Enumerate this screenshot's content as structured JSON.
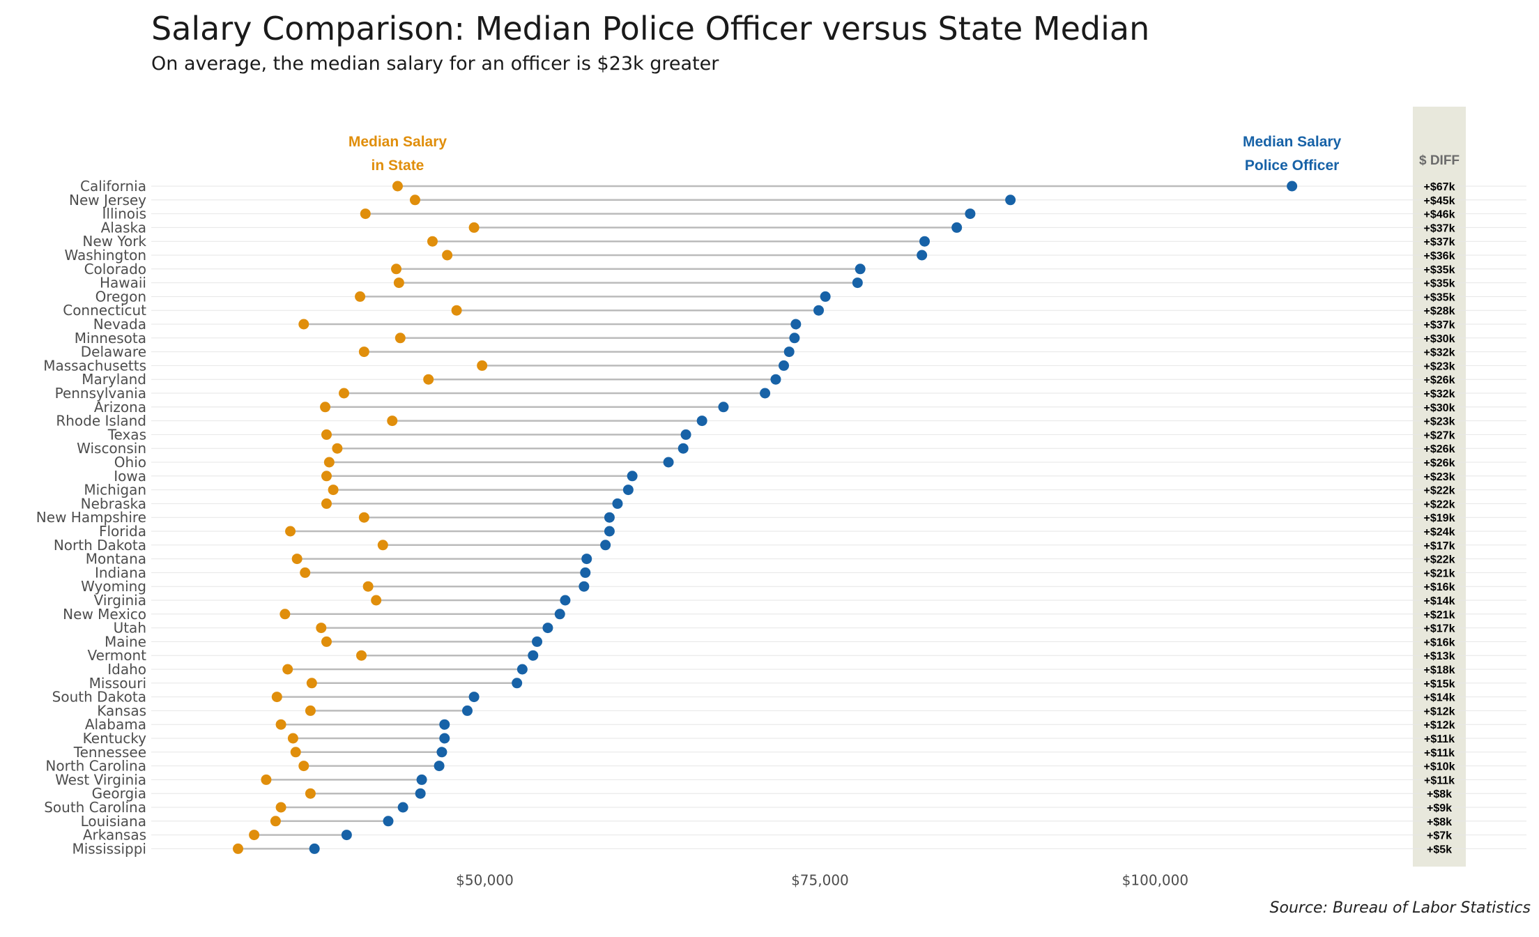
{
  "title": "Salary Comparison: Median Police Officer versus State Median",
  "subtitle": "On average, the median salary for an officer is $23k greater",
  "source": "Source: Bureau of Labor Statistics",
  "colors": {
    "state": "#E08E0B",
    "police": "#1762A7",
    "segment": "#BBBBBB",
    "diff_panel": "#E8E8DC",
    "grid": "#E6E6E6"
  },
  "chart_data": {
    "type": "dumbbell",
    "series": [
      {
        "key": "state",
        "name": "Median Salary in State",
        "label_lines": [
          "Median Salary",
          "in State"
        ]
      },
      {
        "key": "police",
        "name": "Median Salary Police Officer",
        "label_lines": [
          "Median Salary",
          "Police Officer"
        ]
      }
    ],
    "diff_header": "$ DIFF",
    "xticks": [
      50000,
      75000,
      100000
    ],
    "xtick_labels": [
      "$50,000",
      "$75,000",
      "$100,000"
    ],
    "xlim": [
      25000,
      122000
    ],
    "grid": "horizontal",
    "rows": [
      {
        "state": "California",
        "state_salary": 43500,
        "police_salary": 110200,
        "diff": "+$67k"
      },
      {
        "state": "New Jersey",
        "state_salary": 44800,
        "police_salary": 89200,
        "diff": "+$45k"
      },
      {
        "state": "Illinois",
        "state_salary": 41100,
        "police_salary": 86200,
        "diff": "+$46k"
      },
      {
        "state": "Alaska",
        "state_salary": 49200,
        "police_salary": 85200,
        "diff": "+$37k"
      },
      {
        "state": "New York",
        "state_salary": 46100,
        "police_salary": 82800,
        "diff": "+$37k"
      },
      {
        "state": "Washington",
        "state_salary": 47200,
        "police_salary": 82600,
        "diff": "+$36k"
      },
      {
        "state": "Colorado",
        "state_salary": 43400,
        "police_salary": 78000,
        "diff": "+$35k"
      },
      {
        "state": "Hawaii",
        "state_salary": 43600,
        "police_salary": 77800,
        "diff": "+$35k"
      },
      {
        "state": "Oregon",
        "state_salary": 40700,
        "police_salary": 75400,
        "diff": "+$35k"
      },
      {
        "state": "Connecticut",
        "state_salary": 47900,
        "police_salary": 74900,
        "diff": "+$28k"
      },
      {
        "state": "Nevada",
        "state_salary": 36500,
        "police_salary": 73200,
        "diff": "+$37k"
      },
      {
        "state": "Minnesota",
        "state_salary": 43700,
        "police_salary": 73100,
        "diff": "+$30k"
      },
      {
        "state": "Delaware",
        "state_salary": 41000,
        "police_salary": 72700,
        "diff": "+$32k"
      },
      {
        "state": "Massachusetts",
        "state_salary": 49800,
        "police_salary": 72300,
        "diff": "+$23k"
      },
      {
        "state": "Maryland",
        "state_salary": 45800,
        "police_salary": 71700,
        "diff": "+$26k"
      },
      {
        "state": "Pennsylvania",
        "state_salary": 39500,
        "police_salary": 70900,
        "diff": "+$32k"
      },
      {
        "state": "Arizona",
        "state_salary": 38100,
        "police_salary": 67800,
        "diff": "+$30k"
      },
      {
        "state": "Rhode Island",
        "state_salary": 43100,
        "police_salary": 66200,
        "diff": "+$23k"
      },
      {
        "state": "Texas",
        "state_salary": 38200,
        "police_salary": 65000,
        "diff": "+$27k"
      },
      {
        "state": "Wisconsin",
        "state_salary": 39000,
        "police_salary": 64800,
        "diff": "+$26k"
      },
      {
        "state": "Ohio",
        "state_salary": 38400,
        "police_salary": 63700,
        "diff": "+$26k"
      },
      {
        "state": "Iowa",
        "state_salary": 38200,
        "police_salary": 61000,
        "diff": "+$23k"
      },
      {
        "state": "Michigan",
        "state_salary": 38700,
        "police_salary": 60700,
        "diff": "+$22k"
      },
      {
        "state": "Nebraska",
        "state_salary": 38200,
        "police_salary": 59900,
        "diff": "+$22k"
      },
      {
        "state": "New Hampshire",
        "state_salary": 41000,
        "police_salary": 59300,
        "diff": "+$19k"
      },
      {
        "state": "Florida",
        "state_salary": 35500,
        "police_salary": 59300,
        "diff": "+$24k"
      },
      {
        "state": "North Dakota",
        "state_salary": 42400,
        "police_salary": 59000,
        "diff": "+$17k"
      },
      {
        "state": "Montana",
        "state_salary": 36000,
        "police_salary": 57600,
        "diff": "+$22k"
      },
      {
        "state": "Indiana",
        "state_salary": 36600,
        "police_salary": 57500,
        "diff": "+$21k"
      },
      {
        "state": "Wyoming",
        "state_salary": 41300,
        "police_salary": 57400,
        "diff": "+$16k"
      },
      {
        "state": "Virginia",
        "state_salary": 41900,
        "police_salary": 56000,
        "diff": "+$14k"
      },
      {
        "state": "New Mexico",
        "state_salary": 35100,
        "police_salary": 55600,
        "diff": "+$21k"
      },
      {
        "state": "Utah",
        "state_salary": 37800,
        "police_salary": 54700,
        "diff": "+$17k"
      },
      {
        "state": "Maine",
        "state_salary": 38200,
        "police_salary": 53900,
        "diff": "+$16k"
      },
      {
        "state": "Vermont",
        "state_salary": 40800,
        "police_salary": 53600,
        "diff": "+$13k"
      },
      {
        "state": "Idaho",
        "state_salary": 35300,
        "police_salary": 52800,
        "diff": "+$18k"
      },
      {
        "state": "Missouri",
        "state_salary": 37100,
        "police_salary": 52400,
        "diff": "+$15k"
      },
      {
        "state": "South Dakota",
        "state_salary": 34500,
        "police_salary": 49200,
        "diff": "+$14k"
      },
      {
        "state": "Kansas",
        "state_salary": 37000,
        "police_salary": 48700,
        "diff": "+$12k"
      },
      {
        "state": "Alabama",
        "state_salary": 34800,
        "police_salary": 47000,
        "diff": "+$12k"
      },
      {
        "state": "Kentucky",
        "state_salary": 35700,
        "police_salary": 47000,
        "diff": "+$11k"
      },
      {
        "state": "Tennessee",
        "state_salary": 35900,
        "police_salary": 46800,
        "diff": "+$11k"
      },
      {
        "state": "North Carolina",
        "state_salary": 36500,
        "police_salary": 46600,
        "diff": "+$10k"
      },
      {
        "state": "West Virginia",
        "state_salary": 33700,
        "police_salary": 45300,
        "diff": "+$11k"
      },
      {
        "state": "Georgia",
        "state_salary": 37000,
        "police_salary": 45200,
        "diff": "+$8k"
      },
      {
        "state": "South Carolina",
        "state_salary": 34800,
        "police_salary": 43900,
        "diff": "+$9k"
      },
      {
        "state": "Louisiana",
        "state_salary": 34400,
        "police_salary": 42800,
        "diff": "+$8k"
      },
      {
        "state": "Arkansas",
        "state_salary": 32800,
        "police_salary": 39700,
        "diff": "+$7k"
      },
      {
        "state": "Mississippi",
        "state_salary": 31600,
        "police_salary": 37300,
        "diff": "+$5k"
      }
    ]
  }
}
